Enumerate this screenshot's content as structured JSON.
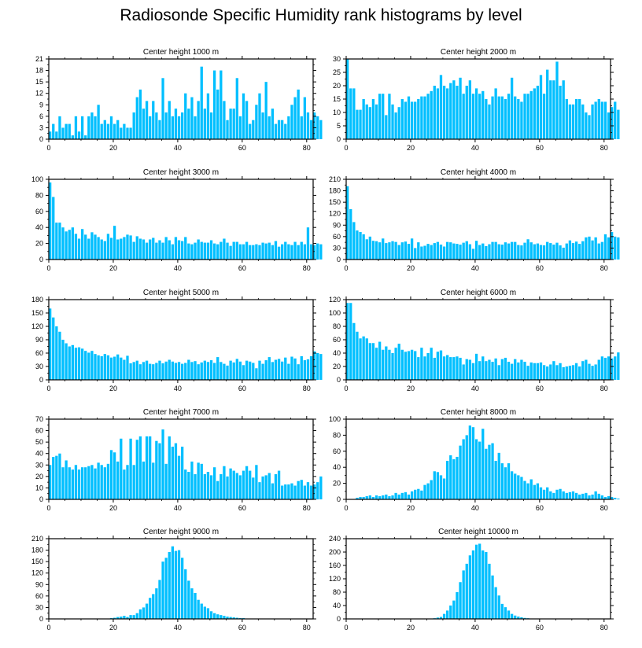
{
  "figure": {
    "title": "Radiosonde Specific Humidity rank histograms by level",
    "bar_color": "#00bfff",
    "axis_color": "#000000"
  },
  "chart_data": [
    {
      "type": "bar",
      "title": "Center height 1000 m",
      "xlim": [
        0,
        82
      ],
      "xticks": [
        0,
        20,
        40,
        60,
        80
      ],
      "ylim": [
        0,
        21
      ],
      "yticks": [
        0,
        3,
        6,
        9,
        12,
        15,
        18,
        21
      ],
      "values": [
        2,
        4,
        2,
        6,
        3,
        4,
        4,
        1,
        6,
        2,
        6,
        1,
        6,
        7,
        6,
        9,
        4,
        5,
        4,
        6,
        4,
        5,
        3,
        4,
        3,
        3,
        7,
        11,
        13,
        8,
        10,
        6,
        10,
        7,
        5,
        16,
        7,
        10,
        6,
        8,
        6,
        7,
        12,
        8,
        11,
        6,
        10,
        19,
        8,
        12,
        7,
        18,
        13,
        18,
        10,
        5,
        8,
        8,
        16,
        6,
        12,
        10,
        4,
        5,
        9,
        12,
        7,
        15,
        6,
        8,
        4,
        5,
        5,
        4,
        6,
        9,
        11,
        13,
        6,
        11,
        7,
        5,
        7,
        6,
        5
      ]
    },
    {
      "type": "bar",
      "title": "Center height 2000 m",
      "xlim": [
        0,
        82
      ],
      "xticks": [
        0,
        20,
        40,
        60,
        80
      ],
      "ylim": [
        0,
        30
      ],
      "yticks": [
        0,
        5,
        10,
        15,
        20,
        25,
        30
      ],
      "values": [
        30,
        19,
        19,
        11,
        11,
        15,
        13,
        12,
        15,
        13,
        17,
        17,
        9,
        17,
        13,
        10,
        12,
        15,
        14,
        16,
        14,
        14,
        15,
        16,
        16,
        17,
        18,
        20,
        19,
        24,
        20,
        19,
        21,
        22,
        20,
        23,
        17,
        20,
        22,
        17,
        19,
        17,
        18,
        15,
        13,
        16,
        19,
        16,
        16,
        15,
        17,
        23,
        16,
        15,
        14,
        17,
        17,
        18,
        19,
        20,
        24,
        17,
        26,
        22,
        22,
        29,
        20,
        22,
        15,
        13,
        13,
        15,
        15,
        13,
        10,
        9,
        13,
        14,
        15,
        14,
        14,
        10,
        12,
        14,
        11
      ]
    },
    {
      "type": "bar",
      "title": "Center height 3000 m",
      "xlim": [
        0,
        82
      ],
      "xticks": [
        0,
        20,
        40,
        60,
        80
      ],
      "ylim": [
        0,
        100
      ],
      "yticks": [
        0,
        20,
        40,
        60,
        80,
        100
      ],
      "values": [
        96,
        78,
        46,
        46,
        40,
        35,
        37,
        40,
        32,
        26,
        38,
        31,
        26,
        34,
        31,
        28,
        25,
        23,
        32,
        27,
        42,
        25,
        26,
        28,
        31,
        30,
        22,
        29,
        26,
        25,
        21,
        25,
        27,
        21,
        24,
        21,
        28,
        24,
        19,
        28,
        24,
        23,
        28,
        20,
        19,
        21,
        25,
        22,
        21,
        21,
        24,
        20,
        19,
        22,
        26,
        21,
        17,
        22,
        22,
        19,
        19,
        22,
        18,
        18,
        19,
        18,
        21,
        20,
        21,
        18,
        23,
        16,
        19,
        22,
        19,
        18,
        22,
        18,
        22,
        19,
        40,
        19,
        18,
        20,
        19
      ]
    },
    {
      "type": "bar",
      "title": "Center height 4000 m",
      "xlim": [
        0,
        82
      ],
      "xticks": [
        0,
        20,
        40,
        60,
        80
      ],
      "ylim": [
        0,
        210
      ],
      "yticks": [
        0,
        30,
        60,
        90,
        120,
        150,
        180,
        210
      ],
      "values": [
        192,
        132,
        98,
        76,
        72,
        66,
        53,
        60,
        49,
        48,
        45,
        55,
        43,
        45,
        48,
        46,
        38,
        45,
        47,
        41,
        55,
        30,
        45,
        34,
        36,
        41,
        38,
        43,
        46,
        39,
        34,
        46,
        45,
        42,
        41,
        39,
        44,
        48,
        40,
        28,
        49,
        38,
        42,
        35,
        40,
        46,
        46,
        40,
        39,
        45,
        42,
        46,
        46,
        38,
        37,
        44,
        53,
        45,
        40,
        42,
        38,
        37,
        46,
        43,
        39,
        44,
        37,
        31,
        42,
        50,
        43,
        47,
        41,
        48,
        58,
        60,
        50,
        58,
        42,
        46,
        66,
        58,
        72,
        60,
        58
      ]
    },
    {
      "type": "bar",
      "title": "Center height 5000 m",
      "xlim": [
        0,
        82
      ],
      "xticks": [
        0,
        20,
        40,
        60,
        80
      ],
      "ylim": [
        0,
        180
      ],
      "yticks": [
        0,
        30,
        60,
        90,
        120,
        150,
        180
      ],
      "values": [
        160,
        140,
        120,
        108,
        90,
        82,
        75,
        78,
        72,
        73,
        70,
        65,
        61,
        65,
        58,
        55,
        53,
        58,
        55,
        50,
        52,
        57,
        50,
        45,
        54,
        37,
        40,
        43,
        35,
        40,
        43,
        36,
        35,
        38,
        43,
        37,
        41,
        45,
        41,
        38,
        40,
        36,
        38,
        45,
        40,
        42,
        35,
        39,
        43,
        40,
        44,
        38,
        51,
        40,
        36,
        32,
        43,
        39,
        47,
        41,
        33,
        43,
        41,
        38,
        26,
        43,
        36,
        44,
        51,
        40,
        45,
        47,
        41,
        50,
        36,
        52,
        48,
        35,
        53,
        44,
        46,
        53,
        64,
        60,
        58
      ]
    },
    {
      "type": "bar",
      "title": "Center height 6000 m",
      "xlim": [
        0,
        82
      ],
      "xticks": [
        0,
        20,
        40,
        60,
        80
      ],
      "ylim": [
        0,
        120
      ],
      "yticks": [
        0,
        20,
        40,
        60,
        80,
        100,
        120
      ],
      "values": [
        115,
        115,
        85,
        72,
        62,
        65,
        62,
        55,
        55,
        48,
        57,
        45,
        50,
        45,
        40,
        48,
        54,
        45,
        42,
        43,
        45,
        43,
        34,
        48,
        35,
        40,
        48,
        33,
        42,
        44,
        35,
        37,
        34,
        34,
        35,
        33,
        23,
        31,
        30,
        25,
        39,
        28,
        35,
        28,
        30,
        27,
        32,
        22,
        31,
        33,
        27,
        24,
        31,
        26,
        30,
        27,
        21,
        26,
        25,
        25,
        26,
        22,
        20,
        23,
        28,
        22,
        25,
        19,
        20,
        21,
        22,
        25,
        20,
        28,
        30,
        24,
        21,
        23,
        30,
        35,
        33,
        35,
        32,
        35,
        41
      ]
    },
    {
      "type": "bar",
      "title": "Center height 7000 m",
      "xlim": [
        0,
        82
      ],
      "xticks": [
        0,
        20,
        40,
        60,
        80
      ],
      "ylim": [
        0,
        70
      ],
      "yticks": [
        0,
        10,
        20,
        30,
        40,
        50,
        60,
        70
      ],
      "values": [
        30,
        37,
        38,
        40,
        28,
        34,
        28,
        26,
        30,
        26,
        28,
        28,
        29,
        30,
        27,
        32,
        30,
        28,
        31,
        43,
        41,
        33,
        53,
        26,
        30,
        53,
        30,
        52,
        55,
        33,
        55,
        55,
        32,
        51,
        49,
        61,
        31,
        55,
        46,
        49,
        38,
        46,
        26,
        24,
        33,
        22,
        32,
        31,
        22,
        24,
        21,
        28,
        16,
        22,
        29,
        20,
        27,
        25,
        23,
        21,
        25,
        29,
        25,
        19,
        30,
        15,
        20,
        21,
        23,
        14,
        22,
        25,
        12,
        13,
        13,
        14,
        12,
        16,
        17,
        12,
        15,
        12,
        13,
        15,
        20
      ]
    },
    {
      "type": "bar",
      "title": "Center height 8000 m",
      "xlim": [
        0,
        82
      ],
      "xticks": [
        0,
        20,
        40,
        60,
        80
      ],
      "ylim": [
        0,
        100
      ],
      "yticks": [
        0,
        20,
        40,
        60,
        80,
        100
      ],
      "values": [
        0,
        0,
        0,
        2,
        3,
        3,
        4,
        5,
        3,
        5,
        4,
        5,
        6,
        4,
        5,
        8,
        6,
        8,
        9,
        6,
        10,
        12,
        13,
        11,
        18,
        20,
        24,
        35,
        34,
        30,
        26,
        48,
        55,
        50,
        53,
        67,
        75,
        80,
        92,
        90,
        75,
        72,
        88,
        63,
        68,
        70,
        48,
        58,
        45,
        40,
        45,
        35,
        32,
        30,
        28,
        23,
        20,
        25,
        18,
        20,
        15,
        12,
        15,
        10,
        8,
        12,
        13,
        10,
        8,
        9,
        10,
        8,
        6,
        7,
        8,
        5,
        6,
        10,
        7,
        5,
        3,
        4,
        3,
        2,
        1
      ]
    },
    {
      "type": "bar",
      "title": "Center height 9000 m",
      "xlim": [
        0,
        82
      ],
      "xticks": [
        0,
        20,
        40,
        60,
        80
      ],
      "ylim": [
        0,
        210
      ],
      "yticks": [
        0,
        30,
        60,
        90,
        120,
        150,
        180,
        210
      ],
      "values": [
        0,
        0,
        0,
        0,
        0,
        0,
        0,
        0,
        0,
        0,
        0,
        0,
        0,
        0,
        0,
        0,
        0,
        0,
        1,
        2,
        3,
        5,
        6,
        8,
        5,
        10,
        10,
        15,
        25,
        30,
        40,
        55,
        65,
        80,
        102,
        150,
        160,
        175,
        190,
        178,
        180,
        160,
        130,
        100,
        80,
        68,
        50,
        40,
        32,
        28,
        20,
        15,
        12,
        10,
        8,
        6,
        5,
        4,
        3,
        2,
        2,
        1,
        1,
        1,
        0,
        1,
        0,
        0,
        0,
        0,
        0,
        0,
        0,
        0,
        0,
        0,
        0,
        0,
        0,
        0,
        0,
        0,
        0,
        0,
        0
      ]
    },
    {
      "type": "bar",
      "title": "Center height 10000 m",
      "xlim": [
        0,
        82
      ],
      "xticks": [
        0,
        20,
        40,
        60,
        80
      ],
      "ylim": [
        0,
        240
      ],
      "yticks": [
        0,
        40,
        80,
        120,
        160,
        200,
        240
      ],
      "values": [
        0,
        0,
        0,
        0,
        0,
        0,
        0,
        0,
        0,
        0,
        0,
        0,
        0,
        0,
        0,
        0,
        0,
        0,
        0,
        0,
        0,
        0,
        0,
        0,
        0,
        0,
        1,
        2,
        4,
        6,
        15,
        25,
        40,
        55,
        80,
        110,
        145,
        165,
        190,
        205,
        222,
        225,
        205,
        200,
        165,
        130,
        95,
        70,
        45,
        35,
        25,
        15,
        10,
        7,
        5,
        3,
        2,
        1,
        1,
        1,
        0,
        0,
        0,
        0,
        0,
        0,
        0,
        0,
        0,
        0,
        0,
        0,
        0,
        0,
        0,
        0,
        0,
        0,
        0,
        0,
        0,
        0,
        0,
        0,
        0
      ]
    }
  ]
}
